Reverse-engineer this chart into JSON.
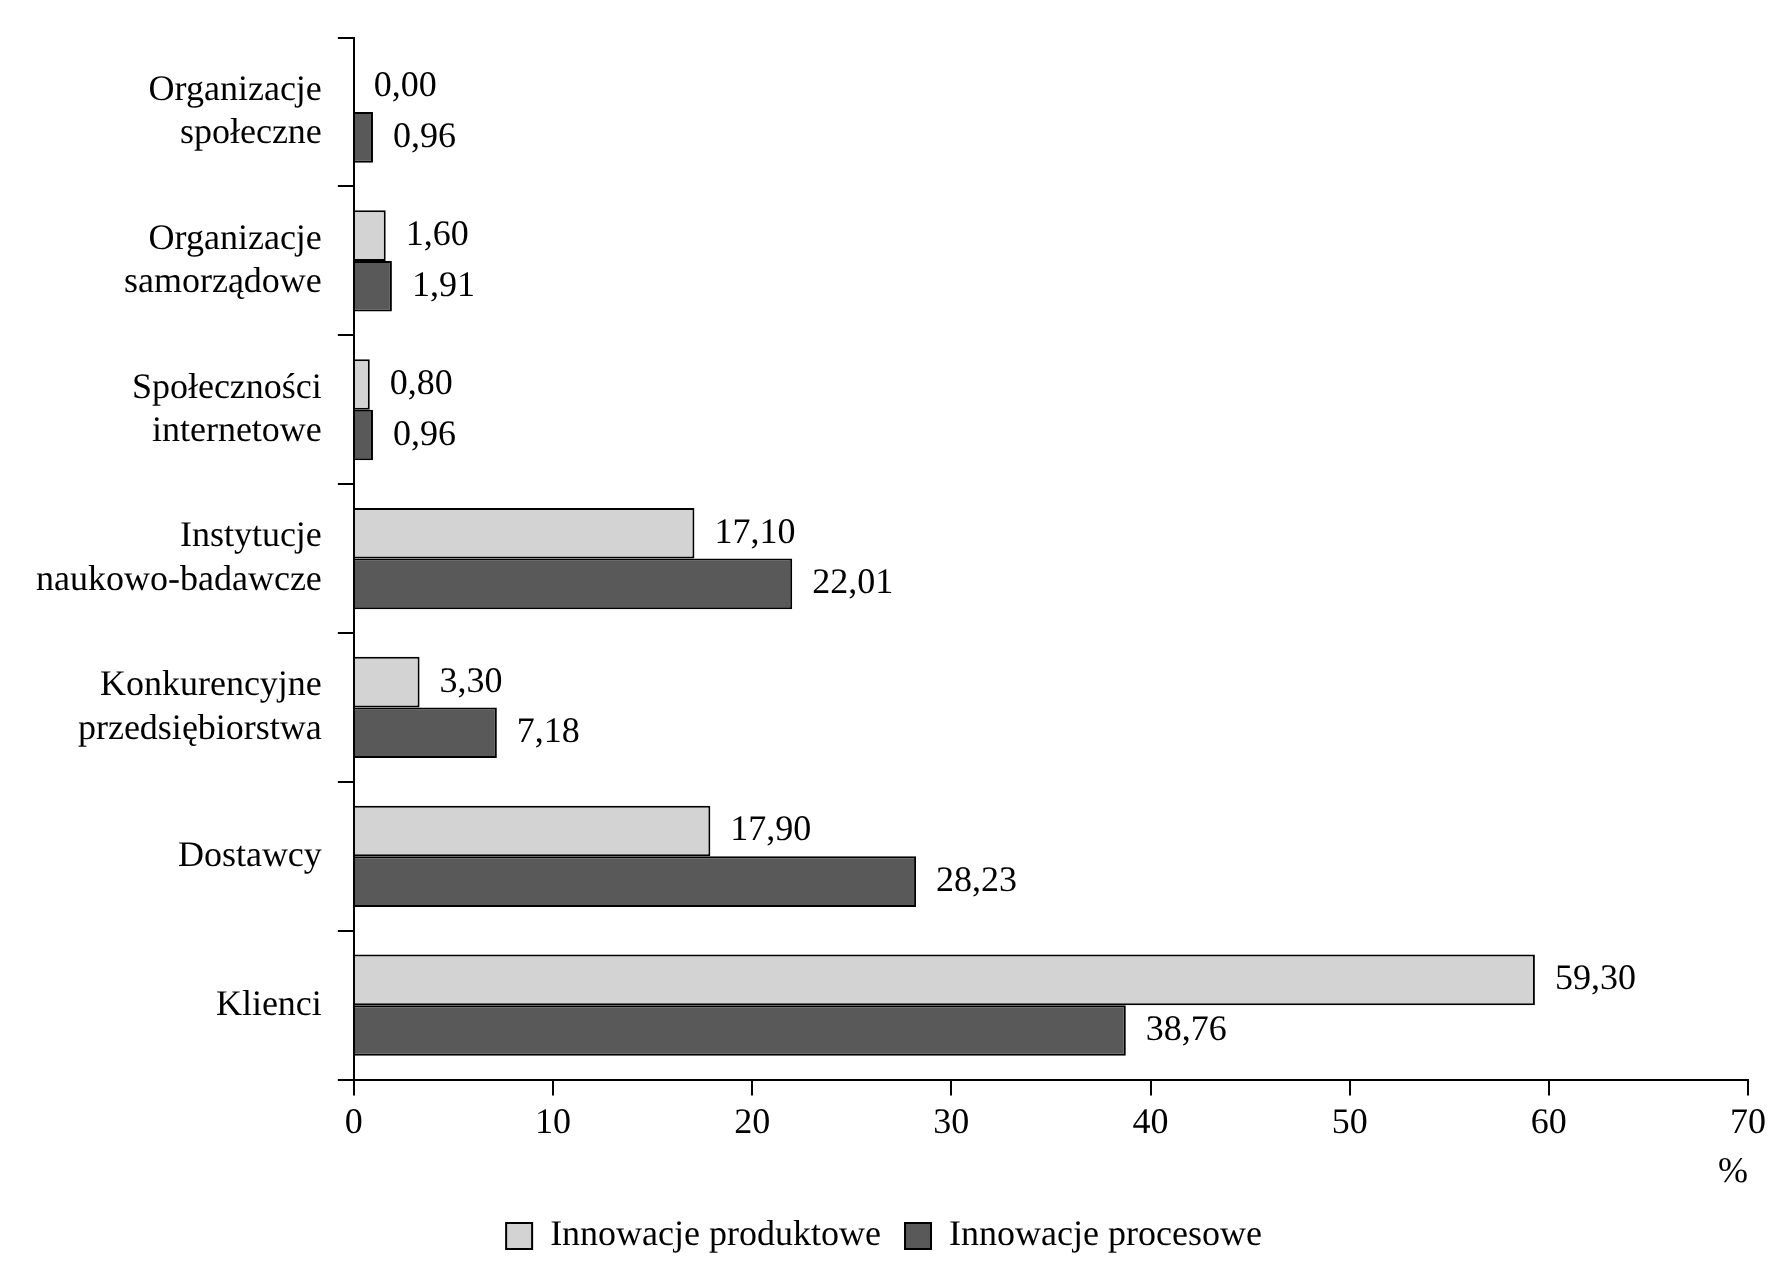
{
  "chart_data": {
    "type": "bar",
    "orientation": "horizontal",
    "categories": [
      "Organizacje społeczne",
      "Organizacje samorządowe",
      "Społeczności internetowe",
      "Instytucje naukowo-badawcze",
      "Konkurencyjne przedsiębiorstwa",
      "Dostawcy",
      "Klienci"
    ],
    "series": [
      {
        "name": "Innowacje produktowe",
        "color": "#d3d3d3",
        "values": [
          0,
          1.6,
          0.8,
          17.1,
          3.3,
          17.9,
          59.3
        ],
        "value_labels": [
          "0,00",
          "1,60",
          "0,80",
          "17,10",
          "3,30",
          "17,90",
          "59,30"
        ]
      },
      {
        "name": "Innowacje procesowe",
        "color": "#595959",
        "values": [
          0.96,
          1.91,
          0.96,
          22.01,
          7.18,
          28.23,
          38.76
        ],
        "value_labels": [
          "0,96",
          "1,91",
          "0,96",
          "22,01",
          "7,18",
          "28,23",
          "38,76"
        ]
      }
    ],
    "xlabel": "%",
    "xlim": [
      0,
      70
    ],
    "xticks": [
      0,
      10,
      20,
      30,
      40,
      50,
      60,
      70
    ],
    "grid": false,
    "legend": "bottom"
  }
}
